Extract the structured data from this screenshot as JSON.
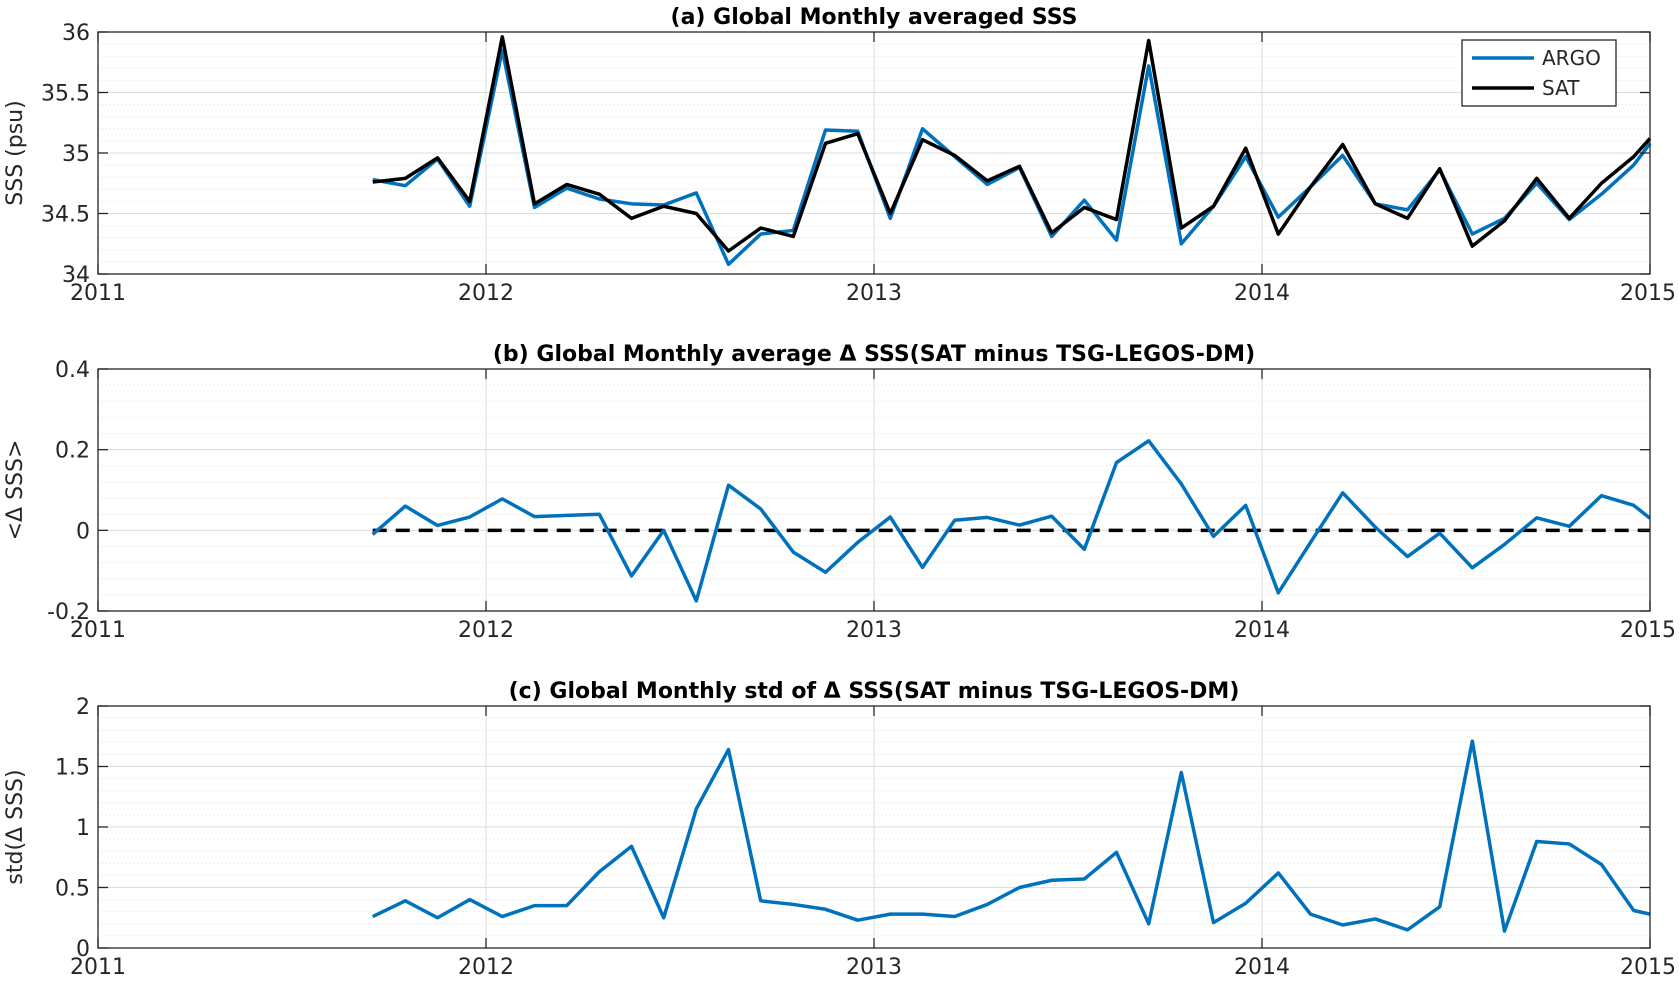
{
  "chart_data": [
    {
      "type": "line",
      "title": "(a) Global Monthly averaged SSS",
      "xlabel": "",
      "ylabel": "SSS (psu)",
      "xlim": [
        2011,
        2015
      ],
      "ylim": [
        34,
        36
      ],
      "xticks": [
        2011,
        2012,
        2013,
        2014,
        2015
      ],
      "xtick_labels": [
        "2011",
        "2012",
        "2013",
        "2014",
        "2015"
      ],
      "yticks": [
        34,
        34.5,
        35,
        35.5,
        36
      ],
      "ytick_labels": [
        "34",
        "34.5",
        "35",
        "35.5",
        "36"
      ],
      "grid": true,
      "legend": "top-right",
      "x": [
        2011.708,
        2011.792,
        2011.875,
        2011.958,
        2012.042,
        2012.125,
        2012.208,
        2012.292,
        2012.375,
        2012.458,
        2012.542,
        2012.625,
        2012.708,
        2012.792,
        2012.875,
        2012.958,
        2013.042,
        2013.125,
        2013.208,
        2013.292,
        2013.375,
        2013.458,
        2013.542,
        2013.625,
        2013.708,
        2013.792,
        2013.875,
        2013.958,
        2014.042,
        2014.125,
        2014.208,
        2014.292,
        2014.375,
        2014.458,
        2014.542,
        2014.625,
        2014.708,
        2014.792,
        2014.875,
        2014.958,
        2015.0
      ],
      "series": [
        {
          "name": "ARGO",
          "color": "#0072bd",
          "values": [
            34.78,
            34.73,
            34.95,
            34.56,
            35.85,
            34.55,
            34.71,
            34.62,
            34.58,
            34.57,
            34.67,
            34.08,
            34.33,
            34.36,
            35.19,
            35.18,
            34.46,
            35.2,
            34.97,
            34.74,
            34.88,
            34.31,
            34.61,
            34.28,
            35.72,
            34.25,
            34.56,
            34.97,
            34.47,
            34.72,
            34.98,
            34.58,
            34.53,
            34.86,
            34.33,
            34.46,
            34.75,
            34.45,
            34.66,
            34.9,
            35.08
          ]
        },
        {
          "name": "SAT",
          "color": "#000000",
          "values": [
            34.76,
            34.79,
            34.96,
            34.6,
            35.96,
            34.58,
            34.74,
            34.66,
            34.46,
            34.56,
            34.5,
            34.19,
            34.38,
            34.31,
            35.08,
            35.16,
            34.5,
            35.11,
            34.98,
            34.77,
            34.89,
            34.34,
            34.55,
            34.45,
            35.93,
            34.38,
            34.56,
            35.04,
            34.33,
            34.72,
            35.07,
            34.58,
            34.46,
            34.87,
            34.23,
            34.44,
            34.79,
            34.46,
            34.75,
            34.97,
            35.12
          ]
        }
      ]
    },
    {
      "type": "line",
      "title": "(b) Global Monthly average Δ SSS(SAT minus TSG-LEGOS-DM)",
      "xlabel": "",
      "ylabel": "<Δ SSS>",
      "xlim": [
        2011,
        2015
      ],
      "ylim": [
        -0.2,
        0.4
      ],
      "xticks": [
        2011,
        2012,
        2013,
        2014,
        2015
      ],
      "xtick_labels": [
        "2011",
        "2012",
        "2013",
        "2014",
        "2015"
      ],
      "yticks": [
        -0.2,
        0,
        0.2,
        0.4
      ],
      "ytick_labels": [
        "-0.2",
        "0",
        "0.2",
        "0.4"
      ],
      "grid": true,
      "reference_line": {
        "y": 0,
        "style": "dashed",
        "color": "#000000"
      },
      "x": [
        2011.708,
        2011.792,
        2011.875,
        2011.958,
        2012.042,
        2012.125,
        2012.208,
        2012.292,
        2012.375,
        2012.458,
        2012.542,
        2012.625,
        2012.708,
        2012.792,
        2012.875,
        2012.958,
        2013.042,
        2013.125,
        2013.208,
        2013.292,
        2013.375,
        2013.458,
        2013.542,
        2013.625,
        2013.708,
        2013.792,
        2013.875,
        2013.958,
        2014.042,
        2014.125,
        2014.208,
        2014.292,
        2014.375,
        2014.458,
        2014.542,
        2014.625,
        2014.708,
        2014.792,
        2014.875,
        2014.958,
        2015.0
      ],
      "series": [
        {
          "color": "#0072bd",
          "values": [
            -0.01,
            0.06,
            0.012,
            0.033,
            0.078,
            0.034,
            0.037,
            0.04,
            -0.113,
            0.0,
            -0.175,
            0.112,
            0.053,
            -0.054,
            -0.104,
            -0.03,
            0.033,
            -0.092,
            0.025,
            0.032,
            0.013,
            0.035,
            -0.047,
            0.168,
            0.222,
            0.115,
            -0.015,
            0.062,
            -0.155,
            -0.03,
            0.093,
            0.008,
            -0.065,
            -0.007,
            -0.093,
            -0.035,
            0.031,
            0.01,
            0.086,
            0.062,
            0.03
          ]
        }
      ]
    },
    {
      "type": "line",
      "title": "(c) Global Monthly std of Δ SSS(SAT minus TSG-LEGOS-DM)",
      "xlabel": "",
      "ylabel": "std(Δ SSS)",
      "xlim": [
        2011,
        2015
      ],
      "ylim": [
        0,
        2
      ],
      "xticks": [
        2011,
        2012,
        2013,
        2014,
        2015
      ],
      "xtick_labels": [
        "2011",
        "2012",
        "2013",
        "2014",
        "2015"
      ],
      "yticks": [
        0,
        0.5,
        1,
        1.5,
        2
      ],
      "ytick_labels": [
        "0",
        "0.5",
        "1",
        "1.5",
        "2"
      ],
      "grid": true,
      "x": [
        2011.708,
        2011.792,
        2011.875,
        2011.958,
        2012.042,
        2012.125,
        2012.208,
        2012.292,
        2012.375,
        2012.458,
        2012.542,
        2012.625,
        2012.708,
        2012.792,
        2012.875,
        2012.958,
        2013.042,
        2013.125,
        2013.208,
        2013.292,
        2013.375,
        2013.458,
        2013.542,
        2013.625,
        2013.708,
        2013.792,
        2013.875,
        2013.958,
        2014.042,
        2014.125,
        2014.208,
        2014.292,
        2014.375,
        2014.458,
        2014.542,
        2014.625,
        2014.708,
        2014.792,
        2014.875,
        2014.958,
        2015.0
      ],
      "series": [
        {
          "color": "#0072bd",
          "values": [
            0.26,
            0.39,
            0.25,
            0.4,
            0.26,
            0.35,
            0.35,
            0.63,
            0.84,
            0.25,
            1.15,
            1.64,
            0.39,
            0.36,
            0.32,
            0.23,
            0.28,
            0.28,
            0.26,
            0.36,
            0.5,
            0.56,
            0.57,
            0.79,
            0.2,
            1.45,
            0.21,
            0.37,
            0.62,
            0.28,
            0.19,
            0.24,
            0.15,
            0.34,
            1.71,
            0.14,
            0.88,
            0.86,
            0.69,
            0.31,
            0.28
          ]
        }
      ]
    }
  ]
}
